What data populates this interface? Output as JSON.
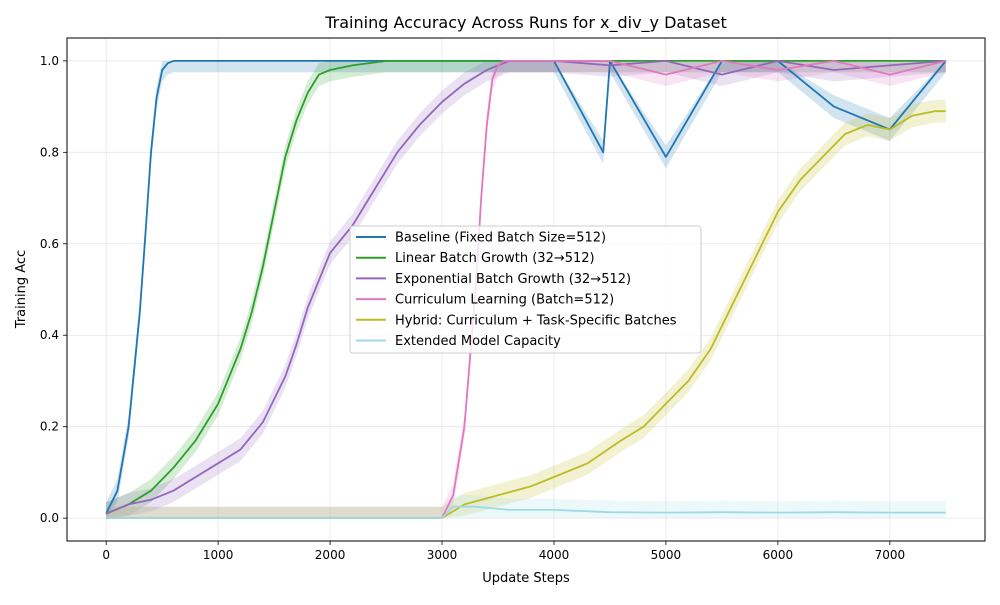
{
  "chart_data": {
    "type": "line",
    "title": "Training Accuracy Across Runs for x_div_y Dataset",
    "xlabel": "Update Steps",
    "ylabel": "Training Acc",
    "xlim": [
      -350,
      7850
    ],
    "ylim": [
      -0.05,
      1.05
    ],
    "xticks": [
      0,
      1000,
      2000,
      3000,
      4000,
      5000,
      6000,
      7000
    ],
    "yticks": [
      0.0,
      0.2,
      0.4,
      0.6,
      0.8,
      1.0
    ],
    "x_tick_labels": [
      "0",
      "1000",
      "2000",
      "3000",
      "4000",
      "5000",
      "6000",
      "7000"
    ],
    "y_tick_labels": [
      "0.0",
      "0.2",
      "0.4",
      "0.6",
      "0.8",
      "1.0"
    ],
    "grid": true,
    "legend_position": "center",
    "series": [
      {
        "name": "Baseline (Fixed Batch Size=512)",
        "color": "#1f77b4",
        "x": [
          0,
          100,
          200,
          300,
          350,
          400,
          450,
          500,
          550,
          600,
          800,
          1000,
          1500,
          2000,
          2500,
          3000,
          3500,
          4000,
          4440,
          4500,
          5000,
          5500,
          6000,
          6500,
          7000,
          7500
        ],
        "y": [
          0.01,
          0.06,
          0.2,
          0.45,
          0.62,
          0.8,
          0.92,
          0.98,
          0.995,
          1.0,
          1.0,
          1.0,
          1.0,
          1.0,
          1.0,
          1.0,
          1.0,
          1.0,
          0.8,
          1.0,
          0.79,
          1.0,
          1.0,
          0.9,
          0.85,
          1.0
        ]
      },
      {
        "name": "Linear Batch Growth (32→512)",
        "color": "#2ca02c",
        "x": [
          0,
          200,
          400,
          600,
          800,
          1000,
          1200,
          1300,
          1400,
          1500,
          1600,
          1700,
          1800,
          1900,
          2000,
          2200,
          2500,
          3000,
          3500,
          4000,
          4500,
          5000,
          5500,
          6000,
          6500,
          7000,
          7500
        ],
        "y": [
          0.01,
          0.03,
          0.06,
          0.11,
          0.17,
          0.25,
          0.37,
          0.45,
          0.55,
          0.67,
          0.79,
          0.87,
          0.93,
          0.97,
          0.98,
          0.99,
          1.0,
          1.0,
          1.0,
          1.0,
          1.0,
          1.0,
          1.0,
          1.0,
          1.0,
          1.0,
          1.0
        ]
      },
      {
        "name": "Exponential Batch Growth (32→512)",
        "color": "#9467bd",
        "x": [
          0,
          200,
          400,
          600,
          800,
          1000,
          1200,
          1400,
          1600,
          1700,
          1800,
          1900,
          2000,
          2200,
          2400,
          2600,
          2800,
          3000,
          3200,
          3400,
          3600,
          4000,
          4500,
          5000,
          5500,
          6000,
          6500,
          7000,
          7500
        ],
        "y": [
          0.01,
          0.03,
          0.04,
          0.06,
          0.09,
          0.12,
          0.15,
          0.21,
          0.31,
          0.38,
          0.46,
          0.52,
          0.58,
          0.64,
          0.72,
          0.8,
          0.86,
          0.91,
          0.95,
          0.98,
          1.0,
          1.0,
          0.99,
          1.0,
          0.97,
          1.0,
          0.98,
          0.99,
          1.0
        ]
      },
      {
        "name": "Curriculum Learning (Batch=512)",
        "color": "#e377c2",
        "x": [
          0,
          3000,
          3100,
          3200,
          3300,
          3350,
          3400,
          3450,
          3500,
          3550,
          3600,
          4000,
          4500,
          5000,
          5500,
          6000,
          6500,
          7000,
          7500
        ],
        "y": [
          0.0,
          0.0,
          0.05,
          0.2,
          0.5,
          0.7,
          0.86,
          0.96,
          0.99,
          1.0,
          1.0,
          1.0,
          1.0,
          0.97,
          1.0,
          0.98,
          1.0,
          0.97,
          1.0
        ]
      },
      {
        "name": "Hybrid: Curriculum + Task-Specific Batches",
        "color": "#bcbd22",
        "x": [
          0,
          3000,
          3200,
          3500,
          3800,
          4000,
          4300,
          4600,
          4800,
          5000,
          5200,
          5400,
          5600,
          5800,
          6000,
          6200,
          6400,
          6600,
          6800,
          7000,
          7200,
          7400,
          7500
        ],
        "y": [
          0.0,
          0.0,
          0.03,
          0.05,
          0.07,
          0.09,
          0.12,
          0.17,
          0.2,
          0.25,
          0.3,
          0.37,
          0.47,
          0.57,
          0.67,
          0.74,
          0.79,
          0.84,
          0.86,
          0.85,
          0.88,
          0.89,
          0.89
        ]
      },
      {
        "name": "Extended Model Capacity",
        "color": "#9edae5",
        "x": [
          0,
          3000,
          3100,
          3300,
          3600,
          4000,
          4500,
          5000,
          5500,
          6000,
          6500,
          7000,
          7500
        ],
        "y": [
          0.0,
          0.0,
          0.025,
          0.025,
          0.018,
          0.018,
          0.013,
          0.012,
          0.013,
          0.012,
          0.013,
          0.012,
          0.012
        ]
      }
    ]
  }
}
